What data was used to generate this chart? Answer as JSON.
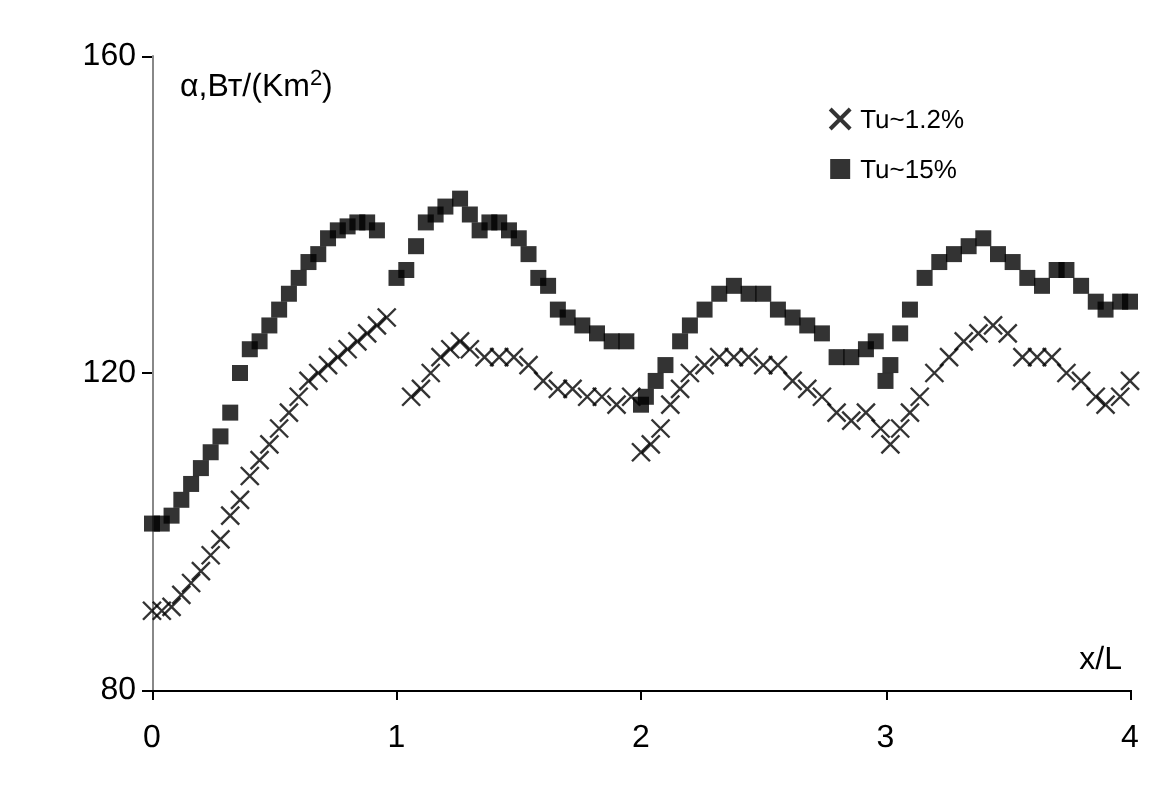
{
  "chart_data": {
    "type": "scatter",
    "ylabel": "α,Вт/(Km$^{2}$)",
    "xlabel": "x/L",
    "xlim": [
      0,
      4
    ],
    "ylim": [
      80,
      160
    ],
    "xticks": [
      0,
      1,
      2,
      3,
      4
    ],
    "yticks": [
      80,
      120,
      160
    ],
    "grid": false,
    "legend": "top right",
    "series": [
      {
        "name": "Tu~1.2%",
        "color": "#000000",
        "marker": "cross",
        "x": [
          0,
          0.04,
          0.08,
          0.12,
          0.16,
          0.2,
          0.24,
          0.28,
          0.32,
          0.36,
          0.4,
          0.44,
          0.48,
          0.52,
          0.56,
          0.6,
          0.64,
          0.68,
          0.72,
          0.76,
          0.8,
          0.84,
          0.88,
          0.92,
          0.96,
          1.06,
          1.1,
          1.14,
          1.18,
          1.22,
          1.26,
          1.3,
          1.36,
          1.42,
          1.48,
          1.54,
          1.6,
          1.66,
          1.72,
          1.78,
          1.84,
          1.9,
          1.96,
          2.0,
          2.04,
          2.08,
          2.12,
          2.16,
          2.2,
          2.26,
          2.32,
          2.38,
          2.44,
          2.5,
          2.56,
          2.62,
          2.68,
          2.74,
          2.8,
          2.86,
          2.92,
          2.98,
          3.02,
          3.06,
          3.1,
          3.14,
          3.2,
          3.26,
          3.32,
          3.38,
          3.44,
          3.5,
          3.56,
          3.62,
          3.68,
          3.74,
          3.8,
          3.86,
          3.9,
          3.96,
          4.0
        ],
        "values": [
          90,
          90,
          90.5,
          92,
          93.5,
          95,
          97,
          99,
          102,
          104,
          107,
          109,
          111,
          113,
          115,
          117,
          119,
          120,
          121,
          122,
          123,
          124,
          125,
          126,
          127,
          117,
          118,
          120,
          122,
          123,
          124,
          123,
          122,
          122,
          122,
          121,
          119,
          118,
          118,
          117,
          117,
          116,
          117,
          110,
          111,
          113,
          116,
          118,
          120,
          121,
          122,
          122,
          122,
          121,
          121,
          119,
          118,
          117,
          115,
          114,
          115,
          113,
          111,
          113,
          115,
          117,
          120,
          122,
          124,
          125,
          126,
          125,
          122,
          122,
          122,
          120,
          119,
          117,
          116,
          117,
          119
        ]
      },
      {
        "name": "Tu~15%",
        "color": "#000000",
        "marker": "square",
        "x": [
          0,
          0.04,
          0.08,
          0.12,
          0.16,
          0.2,
          0.24,
          0.28,
          0.32,
          0.36,
          0.4,
          0.44,
          0.48,
          0.52,
          0.56,
          0.6,
          0.64,
          0.68,
          0.72,
          0.76,
          0.8,
          0.84,
          0.88,
          0.92,
          1.0,
          1.04,
          1.08,
          1.12,
          1.16,
          1.2,
          1.26,
          1.3,
          1.34,
          1.38,
          1.42,
          1.46,
          1.5,
          1.54,
          1.58,
          1.62,
          1.66,
          1.7,
          1.76,
          1.82,
          1.88,
          1.94,
          2.0,
          2.02,
          2.06,
          2.1,
          2.16,
          2.2,
          2.26,
          2.32,
          2.38,
          2.44,
          2.5,
          2.56,
          2.62,
          2.68,
          2.74,
          2.8,
          2.86,
          2.92,
          2.96,
          3.0,
          3.02,
          3.06,
          3.1,
          3.16,
          3.22,
          3.28,
          3.34,
          3.4,
          3.46,
          3.52,
          3.58,
          3.64,
          3.7,
          3.74,
          3.8,
          3.86,
          3.9,
          3.96,
          4.0
        ],
        "values": [
          101,
          101,
          102,
          104,
          106,
          108,
          110,
          112,
          115,
          120,
          123,
          124,
          126,
          128,
          130,
          132,
          134,
          135,
          137,
          138,
          138.5,
          139,
          139,
          138,
          132,
          133,
          136,
          139,
          140,
          141,
          142,
          140,
          138,
          139,
          139,
          138,
          137,
          135,
          132,
          131,
          128,
          127,
          126,
          125,
          124,
          124,
          116,
          117,
          119,
          121,
          124,
          126,
          128,
          130,
          131,
          130,
          130,
          128,
          127,
          126,
          125,
          122,
          122,
          123,
          124,
          119,
          121,
          125,
          128,
          132,
          134,
          135,
          136,
          137,
          135,
          134,
          132,
          131,
          133,
          133,
          131,
          129,
          128,
          129,
          129
        ]
      }
    ]
  }
}
